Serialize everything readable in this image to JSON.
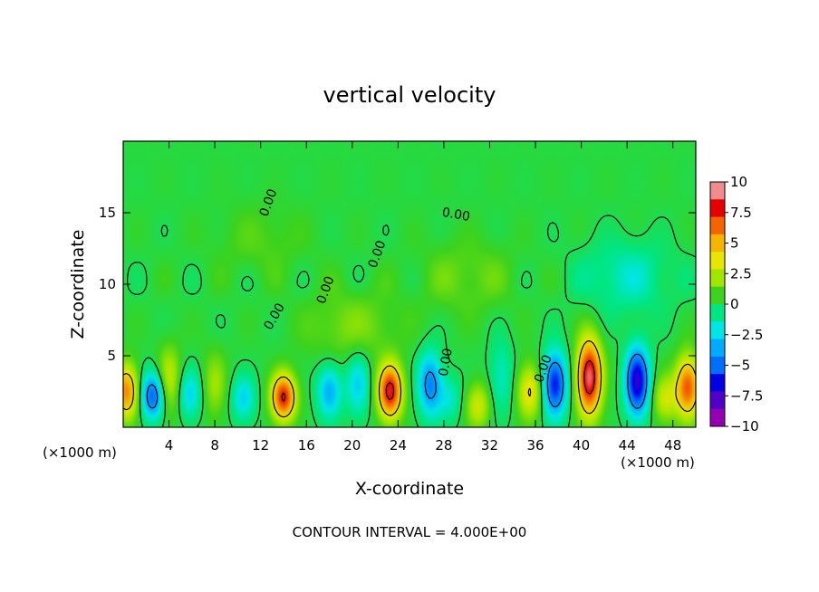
{
  "chart_data": {
    "type": "heatmap",
    "title": "vertical velocity",
    "xlabel": "X-coordinate",
    "ylabel": "Z-coordinate",
    "x_unit": "(×1000 m)",
    "y_unit": "(×1000 m)",
    "xlim": [
      0,
      50
    ],
    "ylim": [
      0,
      20
    ],
    "x_ticks": [
      4,
      8,
      12,
      16,
      20,
      24,
      28,
      32,
      36,
      40,
      44,
      48
    ],
    "y_ticks": [
      5,
      10,
      15
    ],
    "colorbar": {
      "min": -10,
      "max": 10,
      "ticks": [
        10,
        7.5,
        5,
        2.5,
        0,
        -2.5,
        -5,
        -7.5,
        -10
      ],
      "colors": [
        "#f08c8c",
        "#e60000",
        "#f56400",
        "#f5b400",
        "#e6e600",
        "#a0e600",
        "#3cd21e",
        "#00e682",
        "#00e6e6",
        "#00aaff",
        "#006eff",
        "#0000e6",
        "#5000c8",
        "#9600b4"
      ]
    },
    "contour_interval_note": "CONTOUR INTERVAL = 4.000E+00",
    "contour_labels": [
      "0.00",
      "0.00",
      "0.00",
      "0.00",
      "0.00",
      "0.00",
      "0.00"
    ],
    "features": [
      {
        "x": 0.3,
        "z": 2.5,
        "w": 6
      },
      {
        "x": 2.6,
        "z": 2.2,
        "w": -6
      },
      {
        "x": 4.0,
        "z": 3.2,
        "w": 3
      },
      {
        "x": 5.8,
        "z": 2.3,
        "w": -3
      },
      {
        "x": 8.0,
        "z": 3.0,
        "w": 2
      },
      {
        "x": 10.5,
        "z": 2.0,
        "w": -3
      },
      {
        "x": 14.0,
        "z": 2.1,
        "w": 8
      },
      {
        "x": 18.0,
        "z": 2.5,
        "w": -4
      },
      {
        "x": 20.5,
        "z": 3.0,
        "w": -3
      },
      {
        "x": 23.3,
        "z": 2.5,
        "w": 8.5
      },
      {
        "x": 26.8,
        "z": 3.0,
        "w": -5
      },
      {
        "x": 28.5,
        "z": 2.0,
        "w": -2
      },
      {
        "x": 31.0,
        "z": 1.5,
        "w": 3
      },
      {
        "x": 33.0,
        "z": 3.5,
        "w": -2
      },
      {
        "x": 35.5,
        "z": 2.5,
        "w": 4
      },
      {
        "x": 37.7,
        "z": 3.0,
        "w": -7
      },
      {
        "x": 40.7,
        "z": 3.5,
        "w": 9.5
      },
      {
        "x": 44.9,
        "z": 3.2,
        "w": -8
      },
      {
        "x": 47.3,
        "z": 2.0,
        "w": 3
      },
      {
        "x": 49.3,
        "z": 2.8,
        "w": 7
      },
      {
        "x": 44.0,
        "z": 10.5,
        "w": -2
      },
      {
        "x": 20.0,
        "z": 7.0,
        "w": 1.5
      },
      {
        "x": 30.0,
        "z": 10.5,
        "w": 1.2
      },
      {
        "x": 12.0,
        "z": 13.0,
        "w": 0.8
      }
    ]
  }
}
